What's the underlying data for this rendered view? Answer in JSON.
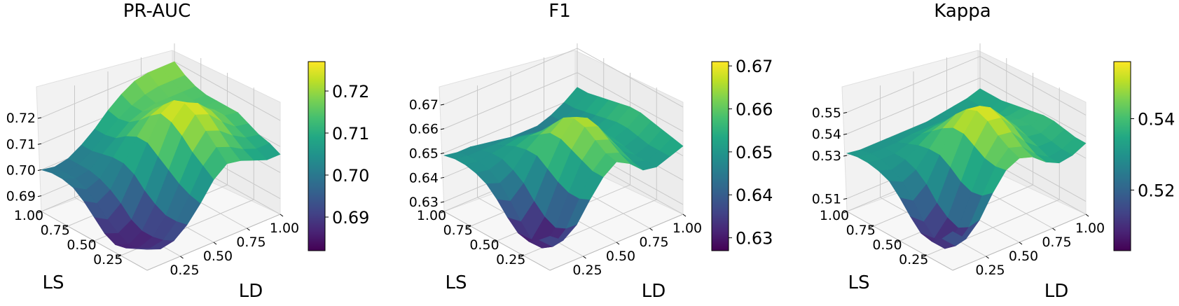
{
  "chart_data": [
    {
      "type": "surface3d",
      "title": "PR-AUC",
      "xlabel": "LD",
      "ylabel": "LS",
      "zlabel": "",
      "colormap": "viridis",
      "x_ticks": [
        "0.25",
        "0.50",
        "0.75",
        "1.00"
      ],
      "y_ticks": [
        "0.25",
        "0.50",
        "0.75",
        "1.00"
      ],
      "z_ticks": [
        "0.69",
        "0.70",
        "0.71",
        "0.72"
      ],
      "colorbar_ticks": [
        "0.69",
        "0.70",
        "0.71",
        "0.72"
      ],
      "zlim": [
        0.684,
        0.727
      ],
      "colorbar_range": [
        0.682,
        0.727
      ],
      "ld_values": [
        0.0,
        0.1,
        0.2,
        0.3,
        0.4,
        0.5,
        0.6,
        0.7,
        0.8,
        0.9,
        1.0
      ],
      "ls_values": [
        0.0,
        0.1,
        0.2,
        0.3,
        0.4,
        0.5,
        0.6,
        0.7,
        0.8,
        0.9,
        1.0
      ],
      "z": [
        [
          0.692,
          0.69,
          0.691,
          0.695,
          0.701,
          0.708,
          0.712,
          0.711,
          0.709,
          0.707,
          0.707
        ],
        [
          0.69,
          0.688,
          0.689,
          0.694,
          0.702,
          0.711,
          0.716,
          0.714,
          0.711,
          0.709,
          0.709
        ],
        [
          0.688,
          0.686,
          0.688,
          0.694,
          0.704,
          0.714,
          0.72,
          0.718,
          0.714,
          0.711,
          0.71
        ],
        [
          0.687,
          0.685,
          0.688,
          0.696,
          0.707,
          0.718,
          0.724,
          0.722,
          0.717,
          0.713,
          0.712
        ],
        [
          0.689,
          0.687,
          0.69,
          0.699,
          0.71,
          0.721,
          0.726,
          0.724,
          0.719,
          0.715,
          0.714
        ],
        [
          0.693,
          0.69,
          0.694,
          0.703,
          0.713,
          0.722,
          0.725,
          0.722,
          0.718,
          0.715,
          0.714
        ],
        [
          0.697,
          0.694,
          0.697,
          0.705,
          0.713,
          0.719,
          0.721,
          0.719,
          0.716,
          0.714,
          0.714
        ],
        [
          0.7,
          0.697,
          0.699,
          0.705,
          0.711,
          0.715,
          0.717,
          0.716,
          0.715,
          0.714,
          0.714
        ],
        [
          0.701,
          0.699,
          0.7,
          0.704,
          0.708,
          0.712,
          0.714,
          0.715,
          0.715,
          0.715,
          0.715
        ],
        [
          0.701,
          0.699,
          0.7,
          0.703,
          0.707,
          0.711,
          0.714,
          0.716,
          0.717,
          0.717,
          0.717
        ],
        [
          0.7,
          0.699,
          0.7,
          0.703,
          0.707,
          0.712,
          0.716,
          0.719,
          0.72,
          0.72,
          0.72
        ]
      ]
    },
    {
      "type": "surface3d",
      "title": "F1",
      "xlabel": "LD",
      "ylabel": "LS",
      "zlabel": "",
      "colormap": "viridis",
      "x_ticks": [
        "0.25",
        "0.50",
        "0.75",
        "1.00"
      ],
      "y_ticks": [
        "0.25",
        "0.50",
        "0.75",
        "1.00"
      ],
      "z_ticks": [
        "0.63",
        "0.64",
        "0.65",
        "0.66",
        "0.67"
      ],
      "colorbar_ticks": [
        "0.63",
        "0.64",
        "0.65",
        "0.66",
        "0.67"
      ],
      "zlim": [
        0.626,
        0.672
      ],
      "colorbar_range": [
        0.627,
        0.671
      ],
      "ld_values": [
        0.0,
        0.1,
        0.2,
        0.3,
        0.4,
        0.5,
        0.6,
        0.7,
        0.8,
        0.9,
        1.0
      ],
      "ls_values": [
        0.0,
        0.1,
        0.2,
        0.3,
        0.4,
        0.5,
        0.6,
        0.7,
        0.8,
        0.9,
        1.0
      ],
      "z": [
        [
          0.64,
          0.636,
          0.64,
          0.648,
          0.655,
          0.659,
          0.656,
          0.651,
          0.65,
          0.652,
          0.654
        ],
        [
          0.636,
          0.631,
          0.636,
          0.646,
          0.655,
          0.66,
          0.658,
          0.652,
          0.65,
          0.652,
          0.655
        ],
        [
          0.633,
          0.628,
          0.634,
          0.646,
          0.657,
          0.663,
          0.661,
          0.654,
          0.65,
          0.652,
          0.656
        ],
        [
          0.634,
          0.629,
          0.636,
          0.648,
          0.659,
          0.666,
          0.664,
          0.656,
          0.651,
          0.653,
          0.657
        ],
        [
          0.638,
          0.634,
          0.64,
          0.651,
          0.661,
          0.667,
          0.665,
          0.657,
          0.652,
          0.654,
          0.658
        ],
        [
          0.643,
          0.64,
          0.645,
          0.654,
          0.661,
          0.665,
          0.663,
          0.656,
          0.652,
          0.654,
          0.658
        ],
        [
          0.647,
          0.645,
          0.648,
          0.654,
          0.658,
          0.66,
          0.658,
          0.653,
          0.651,
          0.653,
          0.657
        ],
        [
          0.649,
          0.648,
          0.65,
          0.653,
          0.655,
          0.655,
          0.653,
          0.65,
          0.649,
          0.652,
          0.656
        ],
        [
          0.65,
          0.649,
          0.65,
          0.651,
          0.652,
          0.651,
          0.649,
          0.648,
          0.648,
          0.651,
          0.655
        ],
        [
          0.65,
          0.649,
          0.649,
          0.649,
          0.649,
          0.648,
          0.647,
          0.646,
          0.647,
          0.65,
          0.654
        ],
        [
          0.649,
          0.648,
          0.648,
          0.647,
          0.646,
          0.645,
          0.645,
          0.645,
          0.647,
          0.65,
          0.654
        ]
      ]
    },
    {
      "type": "surface3d",
      "title": "Kappa",
      "xlabel": "LD",
      "ylabel": "LS",
      "zlabel": "",
      "colormap": "viridis",
      "x_ticks": [
        "0.25",
        "0.50",
        "0.75",
        "1.00"
      ],
      "y_ticks": [
        "0.25",
        "0.50",
        "0.75",
        "1.00"
      ],
      "z_ticks": [
        "0.51",
        "0.53",
        "0.54",
        "0.55"
      ],
      "colorbar_ticks": [
        "0.52",
        "0.54"
      ],
      "zlim": [
        0.504,
        0.556
      ],
      "colorbar_range": [
        0.503,
        0.556
      ],
      "ld_values": [
        0.0,
        0.1,
        0.2,
        0.3,
        0.4,
        0.5,
        0.6,
        0.7,
        0.8,
        0.9,
        1.0
      ],
      "ls_values": [
        0.0,
        0.1,
        0.2,
        0.3,
        0.4,
        0.5,
        0.6,
        0.7,
        0.8,
        0.9,
        1.0
      ],
      "z": [
        [
          0.522,
          0.516,
          0.522,
          0.532,
          0.54,
          0.543,
          0.541,
          0.536,
          0.533,
          0.534,
          0.537
        ],
        [
          0.516,
          0.51,
          0.516,
          0.528,
          0.539,
          0.545,
          0.543,
          0.537,
          0.533,
          0.534,
          0.537
        ],
        [
          0.512,
          0.506,
          0.513,
          0.527,
          0.54,
          0.548,
          0.547,
          0.54,
          0.535,
          0.535,
          0.538
        ],
        [
          0.513,
          0.508,
          0.515,
          0.529,
          0.543,
          0.552,
          0.551,
          0.544,
          0.537,
          0.536,
          0.539
        ],
        [
          0.518,
          0.513,
          0.519,
          0.533,
          0.546,
          0.554,
          0.553,
          0.546,
          0.539,
          0.537,
          0.539
        ],
        [
          0.524,
          0.52,
          0.525,
          0.536,
          0.546,
          0.552,
          0.551,
          0.545,
          0.539,
          0.537,
          0.538
        ],
        [
          0.529,
          0.526,
          0.529,
          0.536,
          0.543,
          0.547,
          0.546,
          0.542,
          0.537,
          0.536,
          0.537
        ],
        [
          0.531,
          0.529,
          0.531,
          0.535,
          0.539,
          0.541,
          0.541,
          0.538,
          0.535,
          0.534,
          0.536
        ],
        [
          0.532,
          0.531,
          0.531,
          0.533,
          0.535,
          0.536,
          0.536,
          0.535,
          0.533,
          0.533,
          0.535
        ],
        [
          0.532,
          0.531,
          0.531,
          0.531,
          0.532,
          0.532,
          0.532,
          0.532,
          0.532,
          0.533,
          0.535
        ],
        [
          0.531,
          0.53,
          0.53,
          0.53,
          0.53,
          0.53,
          0.53,
          0.531,
          0.532,
          0.533,
          0.535
        ]
      ]
    }
  ]
}
